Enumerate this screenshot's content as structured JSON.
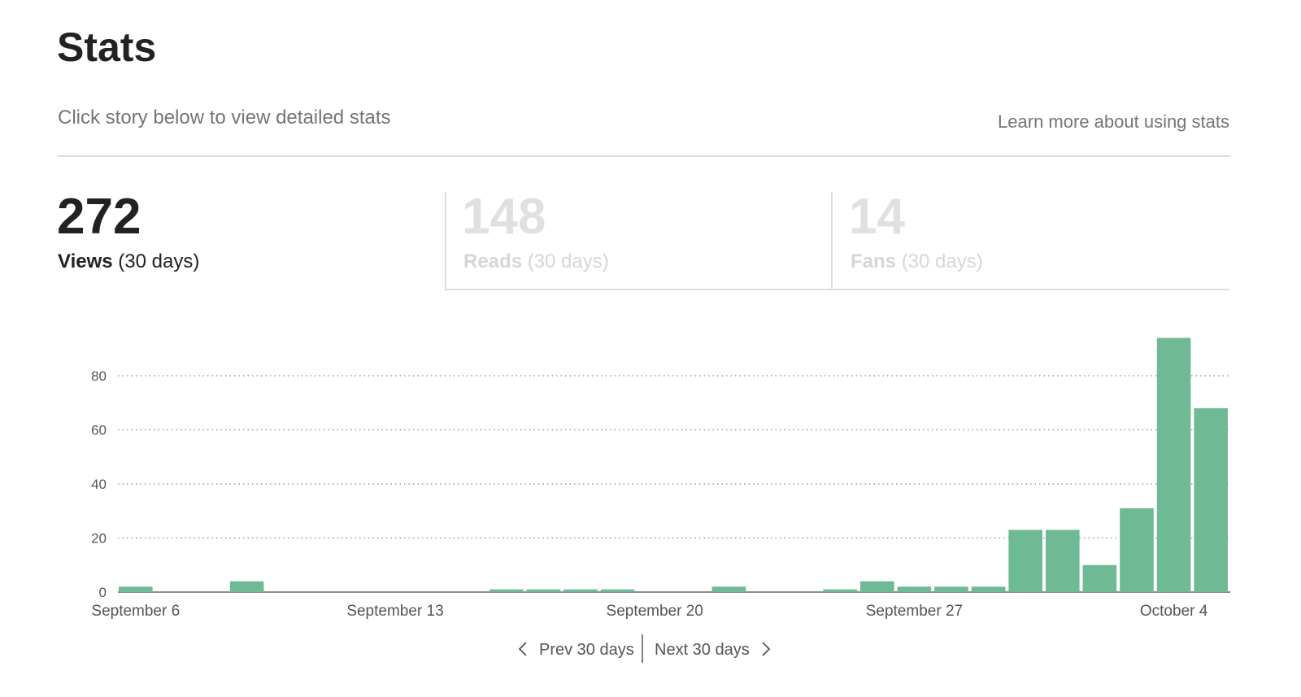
{
  "header": {
    "title": "Stats",
    "subtitle": "Click story below to view detailed stats",
    "link": "Learn more about using stats"
  },
  "tabs": [
    {
      "value": 272,
      "label": "Views",
      "period": "(30 days)"
    },
    {
      "value": 148,
      "label": "Reads",
      "period": "(30 days)"
    },
    {
      "value": 14,
      "label": "Fans",
      "period": "(30 days)"
    }
  ],
  "chart_data": {
    "type": "bar",
    "color": "#6fba95",
    "grid": true,
    "categories": [
      "September 6",
      null,
      null,
      null,
      null,
      null,
      null,
      "September 13",
      null,
      null,
      null,
      null,
      null,
      null,
      "September 20",
      null,
      null,
      null,
      null,
      null,
      null,
      "September 27",
      null,
      null,
      null,
      null,
      null,
      null,
      "October 4",
      null
    ],
    "values": [
      2,
      0,
      0,
      4,
      0,
      0,
      0,
      0,
      0,
      0,
      1,
      1,
      1,
      1,
      0,
      0,
      2,
      0,
      0,
      1,
      4,
      2,
      2,
      2,
      23,
      23,
      10,
      31,
      94,
      68
    ],
    "ylim": [
      0,
      100
    ],
    "yticks": [
      0,
      20,
      40,
      60,
      80
    ]
  },
  "pager": {
    "prev": "Prev 30 days",
    "next": "Next 30 days"
  }
}
